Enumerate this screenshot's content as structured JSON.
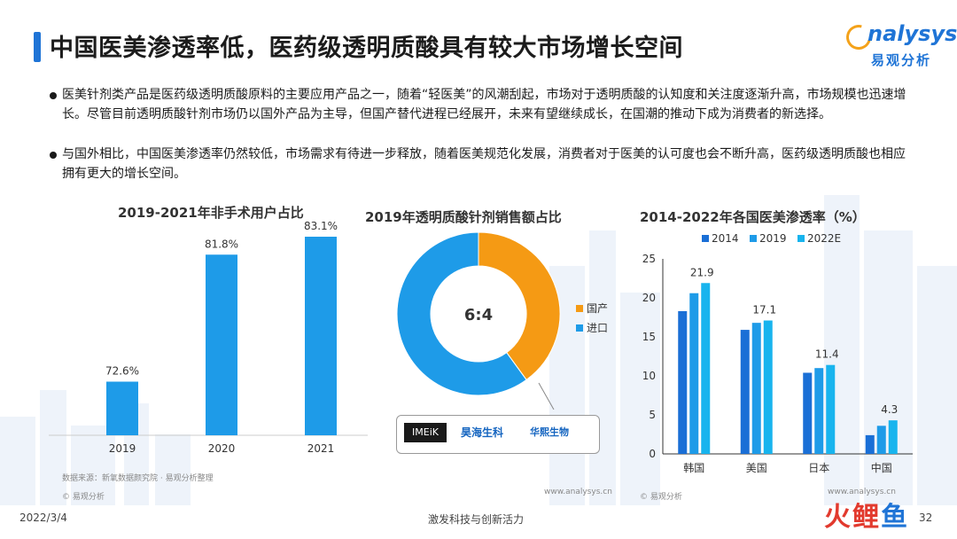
{
  "header": {
    "title": "中国医美渗透率低，医药级透明质酸具有较大市场增长空间",
    "logo_en": "nalysys",
    "logo_cn": "易观分析"
  },
  "bullets": [
    "医美针剂类产品是医药级透明质酸原料的主要应用产品之一，随着“轻医美”的风潮刮起，市场对于透明质酸的认知度和关注度逐渐升高，市场规模也迅速增长。尽管目前透明质酸针剂市场仍以国外产品为主导，但国产替代进程已经展开，未来有望继续成长，在国潮的推动下成为消费者的新选择。",
    "与国外相比，中国医美渗透率仍然较低，市场需求有待进一步释放，随着医美规范化发展，消费者对于医美的认可度也会不断升高，医药级透明质酸也相应拥有更大的增长空间。"
  ],
  "chart_data": [
    {
      "type": "bar",
      "title": "2019-2021年非手术用户占比",
      "categories": [
        "2019",
        "2020",
        "2021"
      ],
      "values": [
        72.6,
        81.8,
        83.1
      ],
      "value_labels": [
        "72.6%",
        "81.8%",
        "83.1%"
      ],
      "ylim": [
        70,
        84
      ],
      "color": "#1e9be8"
    },
    {
      "type": "pie",
      "title": "2019年透明质酸针剂销售额占比",
      "center_label": "6:4",
      "slices": [
        {
          "name": "国产",
          "value": 40,
          "color": "#f59a14"
        },
        {
          "name": "进口",
          "value": 60,
          "color": "#1e9be8"
        }
      ],
      "legend_position": "right"
    },
    {
      "type": "bar",
      "title": "2014-2022年各国医美渗透率（%）",
      "categories": [
        "韩国",
        "美国",
        "日本",
        "中国"
      ],
      "series": [
        {
          "name": "2014",
          "values": [
            18.3,
            15.9,
            10.4,
            2.4
          ],
          "color": "#1a6fd6"
        },
        {
          "name": "2019",
          "values": [
            20.6,
            16.8,
            11.0,
            3.6
          ],
          "color": "#1e9be8"
        },
        {
          "name": "2022E",
          "values": [
            21.9,
            17.1,
            11.4,
            4.3
          ],
          "color": "#18b4ee"
        }
      ],
      "value_labels": [
        "21.9",
        "17.1",
        "11.4",
        "4.3"
      ],
      "yticks": [
        "0",
        "5",
        "10",
        "15",
        "20",
        "25"
      ],
      "ylim": [
        0,
        25
      ],
      "legend_position": "top"
    }
  ],
  "brands": [
    "IMEiK",
    "昊海生科",
    "华熙生物"
  ],
  "source_note": "数据来源：新氧数据颜究院 · 易观分析整理",
  "copyright_left": "© 易观分析",
  "copyright_right": "© 易观分析",
  "website_left": "www.analysys.cn",
  "website_right": "www.analysys.cn",
  "footer": {
    "date": "2022/3/4",
    "slogan": "激发科技与创新活力",
    "page": "32",
    "logo_red": "火鲤",
    "logo_blue": "鱼"
  },
  "colors": {
    "accent": "#1f74d6",
    "orange": "#f59a14",
    "blue": "#1e9be8"
  }
}
